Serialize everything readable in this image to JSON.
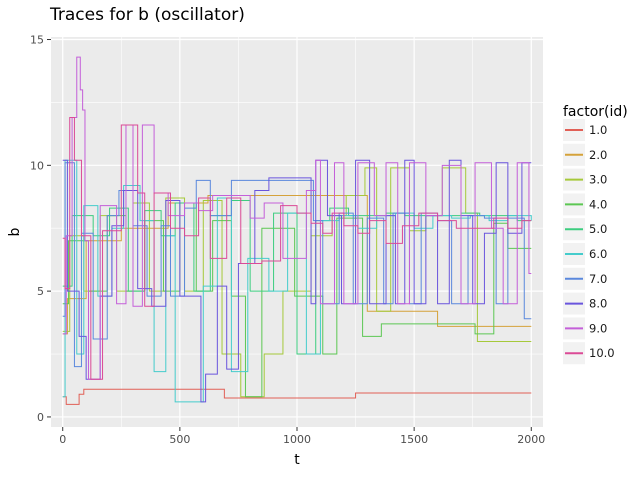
{
  "chart_data": {
    "type": "line",
    "step": true,
    "title": "Traces for b (oscillator)",
    "xlabel": "t",
    "ylabel": "b",
    "xlim": [
      -50,
      2050
    ],
    "ylim": [
      -0.4,
      15.1
    ],
    "x_ticks": [
      0,
      500,
      1000,
      1500,
      2000
    ],
    "x_tick_labels": [
      "0",
      "500",
      "1000",
      "1500",
      "2000"
    ],
    "y_ticks": [
      0,
      5,
      10,
      15
    ],
    "y_tick_labels": [
      "0",
      "5",
      "10",
      "15"
    ],
    "grid": true,
    "background": "#ebebeb",
    "legend_title": "factor(id)",
    "legend_position": "right",
    "series": [
      {
        "name": "1.0",
        "color": "#e15f56",
        "x": [
          0,
          15,
          70,
          90,
          690,
          1250,
          2000
        ],
        "y": [
          0.8,
          0.5,
          0.9,
          1.1,
          0.75,
          0.95,
          0.95
        ]
      },
      {
        "name": "2.0",
        "color": "#d5a23a",
        "x": [
          0,
          20,
          100,
          250,
          450,
          620,
          800,
          1000,
          1300,
          1600,
          2000
        ],
        "y": [
          3.3,
          4.7,
          7.0,
          7.5,
          8.5,
          8.8,
          8.8,
          8.8,
          4.2,
          3.6,
          3.6
        ]
      },
      {
        "name": "3.0",
        "color": "#a6c93a",
        "x": [
          0,
          30,
          90,
          160,
          230,
          300,
          370,
          440,
          520,
          600,
          680,
          760,
          860,
          940,
          1060,
          1150,
          1210,
          1290,
          1340,
          1400,
          1480,
          1550,
          1620,
          1720,
          1770,
          2000
        ],
        "y": [
          3.4,
          7.2,
          5.0,
          8.0,
          5.0,
          8.5,
          5.0,
          8.7,
          5.0,
          8.6,
          2.5,
          0.8,
          2.5,
          5.0,
          7.2,
          8.0,
          8.8,
          9.9,
          4.2,
          9.9,
          7.4,
          8.0,
          9.9,
          8.1,
          3.0,
          3.0
        ]
      },
      {
        "name": "4.0",
        "color": "#5cc753",
        "x": [
          0,
          25,
          110,
          190,
          270,
          350,
          430,
          500,
          570,
          640,
          720,
          780,
          850,
          990,
          1110,
          1170,
          1280,
          1360,
          1450,
          1530,
          1610,
          1680,
          1760,
          1840,
          1900,
          2000
        ],
        "y": [
          4.5,
          7.0,
          5.0,
          8.0,
          5.0,
          7.8,
          5.0,
          8.5,
          5.0,
          7.8,
          4.8,
          0.8,
          7.5,
          4.8,
          2.5,
          7.9,
          3.2,
          3.7,
          3.7,
          3.7,
          3.7,
          3.7,
          3.3,
          7.7,
          6.7,
          6.7
        ]
      },
      {
        "name": "5.0",
        "color": "#3ccd7f",
        "x": [
          0,
          40,
          130,
          200,
          280,
          350,
          420,
          480,
          560,
          630,
          720,
          800,
          900,
          1000,
          1080,
          1140,
          1220,
          1300,
          1380,
          1460,
          1540,
          1620,
          1700,
          1780,
          1860,
          1940,
          2000
        ],
        "y": [
          5.2,
          8.0,
          7.2,
          8.3,
          5.0,
          8.2,
          7.2,
          8.5,
          5.0,
          8.0,
          8.6,
          5.0,
          8.1,
          2.5,
          7.8,
          8.3,
          8.0,
          8.0,
          8.1,
          8.0,
          8.0,
          8.0,
          8.1,
          8.0,
          8.0,
          7.8,
          7.8
        ]
      },
      {
        "name": "6.0",
        "color": "#45cccc",
        "x": [
          0,
          10,
          60,
          90,
          150,
          210,
          260,
          330,
          390,
          440,
          480,
          540,
          600,
          660,
          720,
          790,
          880,
          960,
          1040,
          1100,
          1180,
          1260,
          1340,
          1420,
          1500,
          1580,
          1660,
          1740,
          1820,
          1900,
          2000
        ],
        "y": [
          0.8,
          10.2,
          2.5,
          8.4,
          4.8,
          7.5,
          9.2,
          7.8,
          1.8,
          7.2,
          0.6,
          0.6,
          5.2,
          8.7,
          1.8,
          6.3,
          5.0,
          8.1,
          2.5,
          7.8,
          8.0,
          7.5,
          8.0,
          8.1,
          7.5,
          8.0,
          7.9,
          8.0,
          7.8,
          8.0,
          7.8
        ]
      },
      {
        "name": "7.0",
        "color": "#5a88dd",
        "x": [
          0,
          10,
          50,
          80,
          130,
          190,
          240,
          300,
          360,
          420,
          460,
          520,
          570,
          630,
          720,
          820,
          930,
          1070,
          1110,
          1180,
          1240,
          1300,
          1370,
          1410,
          1480,
          1530,
          1600,
          1660,
          1730,
          1800,
          1850,
          1900,
          1970,
          2000
        ],
        "y": [
          4.0,
          10.1,
          2.0,
          7.3,
          3.1,
          8.0,
          9.0,
          7.6,
          4.8,
          7.6,
          4.8,
          8.3,
          9.4,
          8.0,
          9.4,
          9.4,
          9.4,
          7.8,
          4.5,
          8.1,
          4.5,
          7.9,
          4.5,
          8.1,
          4.5,
          8.1,
          7.8,
          4.5,
          8.0,
          7.9,
          4.5,
          7.9,
          3.9,
          3.9
        ]
      },
      {
        "name": "8.0",
        "color": "#6a55dd",
        "x": [
          0,
          20,
          70,
          100,
          160,
          210,
          260,
          320,
          380,
          440,
          500,
          590,
          610,
          660,
          700,
          750,
          820,
          880,
          1060,
          1080,
          1130,
          1190,
          1250,
          1310,
          1380,
          1420,
          1460,
          1500,
          1550,
          1600,
          1650,
          1700,
          1750,
          1800,
          1850,
          1900,
          1960,
          2000
        ],
        "y": [
          10.2,
          5.0,
          3.2,
          1.5,
          4.8,
          7.6,
          9.0,
          5.1,
          4.4,
          8.6,
          4.8,
          0.6,
          1.7,
          5.2,
          1.9,
          6.1,
          9.0,
          9.5,
          4.5,
          10.2,
          8.0,
          4.5,
          10.2,
          4.5,
          8.0,
          4.5,
          10.2,
          4.5,
          8.0,
          4.5,
          10.2,
          8.0,
          4.5,
          7.3,
          10.1,
          7.3,
          10.1,
          10.1
        ]
      },
      {
        "name": "9.0",
        "color": "#c45fd9",
        "x": [
          0,
          15,
          40,
          60,
          75,
          85,
          95,
          110,
          160,
          230,
          270,
          300,
          340,
          390,
          450,
          520,
          580,
          640,
          720,
          800,
          860,
          940,
          1040,
          1080,
          1100,
          1160,
          1200,
          1260,
          1330,
          1380,
          1430,
          1480,
          1550,
          1620,
          1700,
          1760,
          1830,
          1880,
          1940,
          1990,
          2000
        ],
        "y": [
          3.3,
          7.2,
          11.9,
          14.3,
          13.0,
          12.2,
          7.0,
          1.5,
          8.4,
          4.5,
          11.6,
          4.4,
          11.6,
          8.9,
          8.0,
          8.5,
          8.2,
          8.8,
          8.8,
          7.9,
          8.5,
          6.3,
          9.0,
          10.2,
          4.5,
          10.1,
          4.5,
          10.1,
          8.0,
          10.1,
          4.5,
          10.1,
          8.0,
          10.0,
          4.5,
          10.1,
          7.5,
          4.5,
          10.1,
          5.7,
          5.7
        ]
      },
      {
        "name": "10.0",
        "color": "#db4a96",
        "x": [
          0,
          10,
          30,
          50,
          80,
          120,
          170,
          250,
          320,
          350,
          390,
          460,
          520,
          580,
          630,
          700,
          760,
          850,
          930,
          1000,
          1060,
          1110,
          1150,
          1200,
          1260,
          1310,
          1380,
          1450,
          1520,
          1600,
          1680,
          1760,
          1840,
          1900,
          1960,
          2000
        ],
        "y": [
          7.1,
          5.1,
          11.9,
          10.2,
          7.2,
          1.5,
          7.4,
          11.6,
          8.9,
          4.4,
          8.9,
          7.5,
          7.2,
          8.7,
          6.3,
          8.7,
          6.1,
          6.2,
          8.4,
          8.1,
          7.7,
          7.3,
          8.1,
          7.6,
          7.3,
          7.8,
          6.9,
          7.6,
          8.1,
          7.8,
          7.5,
          7.5,
          7.9,
          7.5,
          7.8,
          7.8
        ]
      }
    ]
  }
}
